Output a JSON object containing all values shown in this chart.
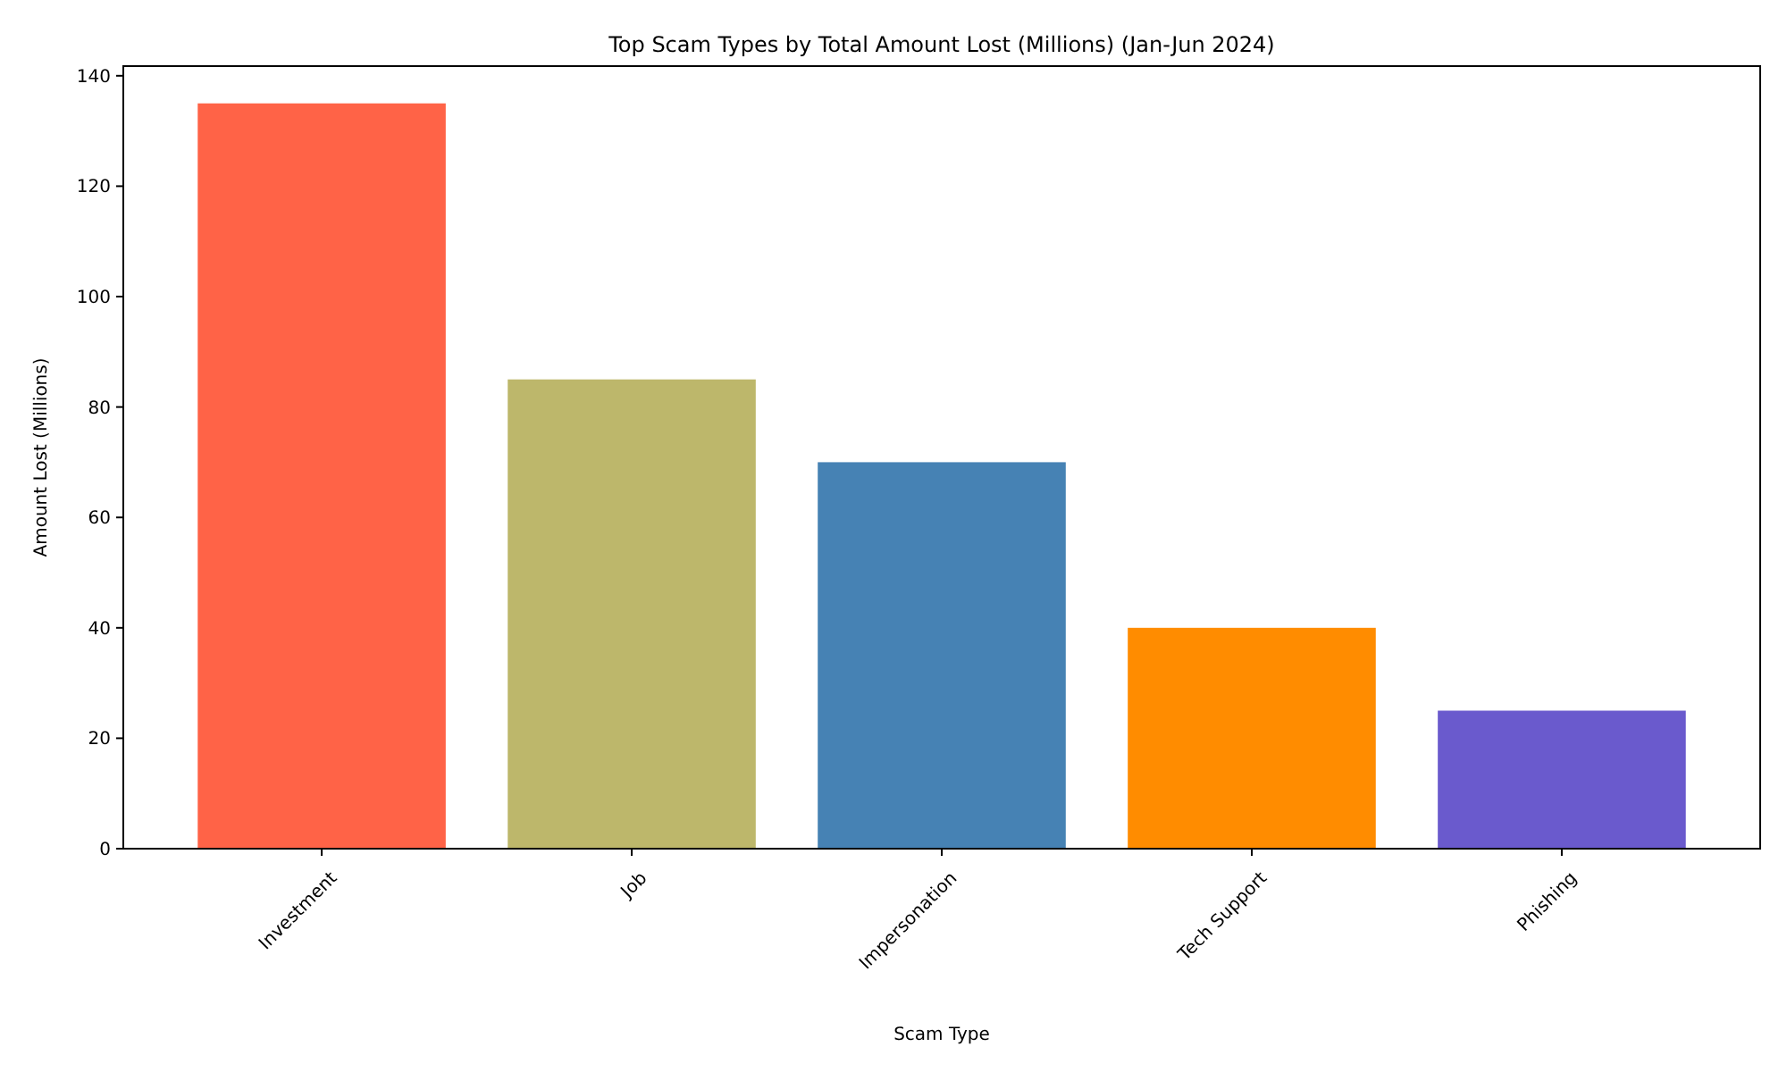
{
  "chart_data": {
    "type": "bar",
    "title": "Top Scam Types by Total Amount Lost (Millions) (Jan-Jun 2024)",
    "xlabel": "Scam Type",
    "ylabel": "Amount Lost (Millions)",
    "categories": [
      "Investment",
      "Job",
      "Impersonation",
      "Tech Support",
      "Phishing"
    ],
    "values": [
      135,
      85,
      70,
      40,
      25
    ],
    "colors": [
      "#ff6347",
      "#bdb76b",
      "#4682b4",
      "#ff8c00",
      "#6a5acd"
    ],
    "ylim": [
      0,
      141.75
    ],
    "yticks": [
      0,
      20,
      40,
      60,
      80,
      100,
      120,
      140
    ],
    "grid": false
  }
}
